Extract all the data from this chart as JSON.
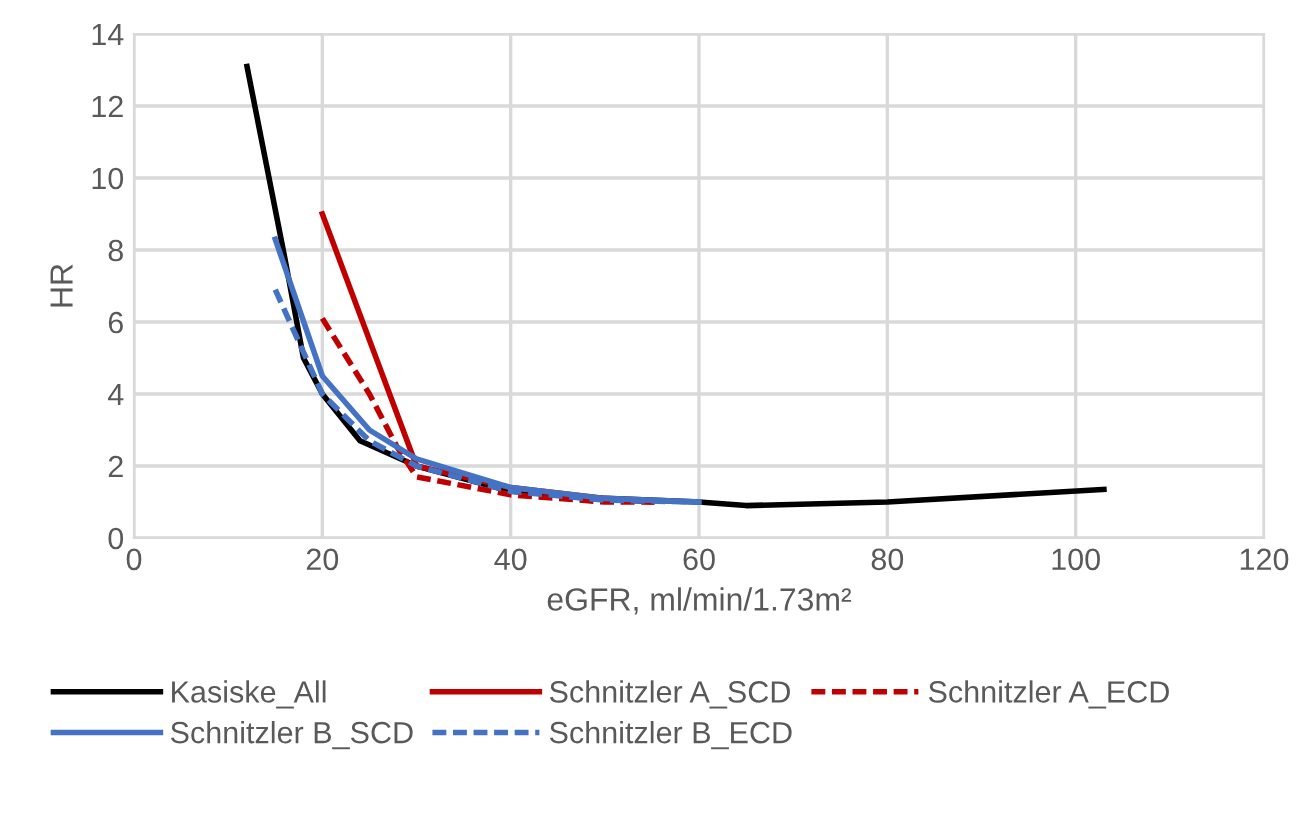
{
  "chart_data": {
    "type": "line",
    "xlabel": "eGFR, ml/min/1.73m²",
    "ylabel": "HR",
    "xlim": [
      0,
      120
    ],
    "xticks": [
      0,
      20,
      40,
      60,
      80,
      100,
      120
    ],
    "ylim": [
      0,
      14
    ],
    "yticks": [
      0,
      2,
      4,
      6,
      8,
      10,
      12,
      14
    ],
    "grid": true,
    "legend": "bottom",
    "marker": "none",
    "series": [
      {
        "name": "Kasiske_All",
        "color": "#000000",
        "line_style": "solid",
        "x": [
          12,
          16,
          18,
          20,
          24,
          30,
          40,
          50,
          60,
          65,
          80,
          103
        ],
        "values": [
          13.1,
          7.8,
          5.0,
          4.0,
          2.7,
          2.0,
          1.3,
          1.1,
          1.0,
          0.9,
          1.0,
          1.35
        ]
      },
      {
        "name": "Schnitzler A_SCD",
        "color": "#c00000",
        "line_style": "solid",
        "x": [
          20,
          30,
          40,
          50,
          55
        ],
        "values": [
          9.0,
          2.0,
          1.4,
          1.1,
          1.0
        ]
      },
      {
        "name": "Schnitzler A_ECD",
        "color": "#c00000",
        "line_style": "dashed",
        "x": [
          20,
          25,
          28,
          30,
          40,
          50,
          55
        ],
        "values": [
          6.1,
          4.0,
          2.5,
          1.7,
          1.2,
          1.0,
          1.0
        ]
      },
      {
        "name": "Schnitzler B_SCD",
        "color": "#4472c4",
        "line_style": "solid",
        "x": [
          15,
          20,
          25,
          30,
          40,
          50,
          60
        ],
        "values": [
          8.3,
          4.5,
          3.0,
          2.2,
          1.4,
          1.1,
          1.0
        ]
      },
      {
        "name": "Schnitzler B_ECD",
        "color": "#4472c4",
        "line_style": "dashed",
        "x": [
          15,
          20,
          25,
          30,
          40,
          50,
          60
        ],
        "values": [
          6.9,
          4.0,
          2.7,
          2.0,
          1.3,
          1.05,
          1.0
        ]
      }
    ]
  }
}
